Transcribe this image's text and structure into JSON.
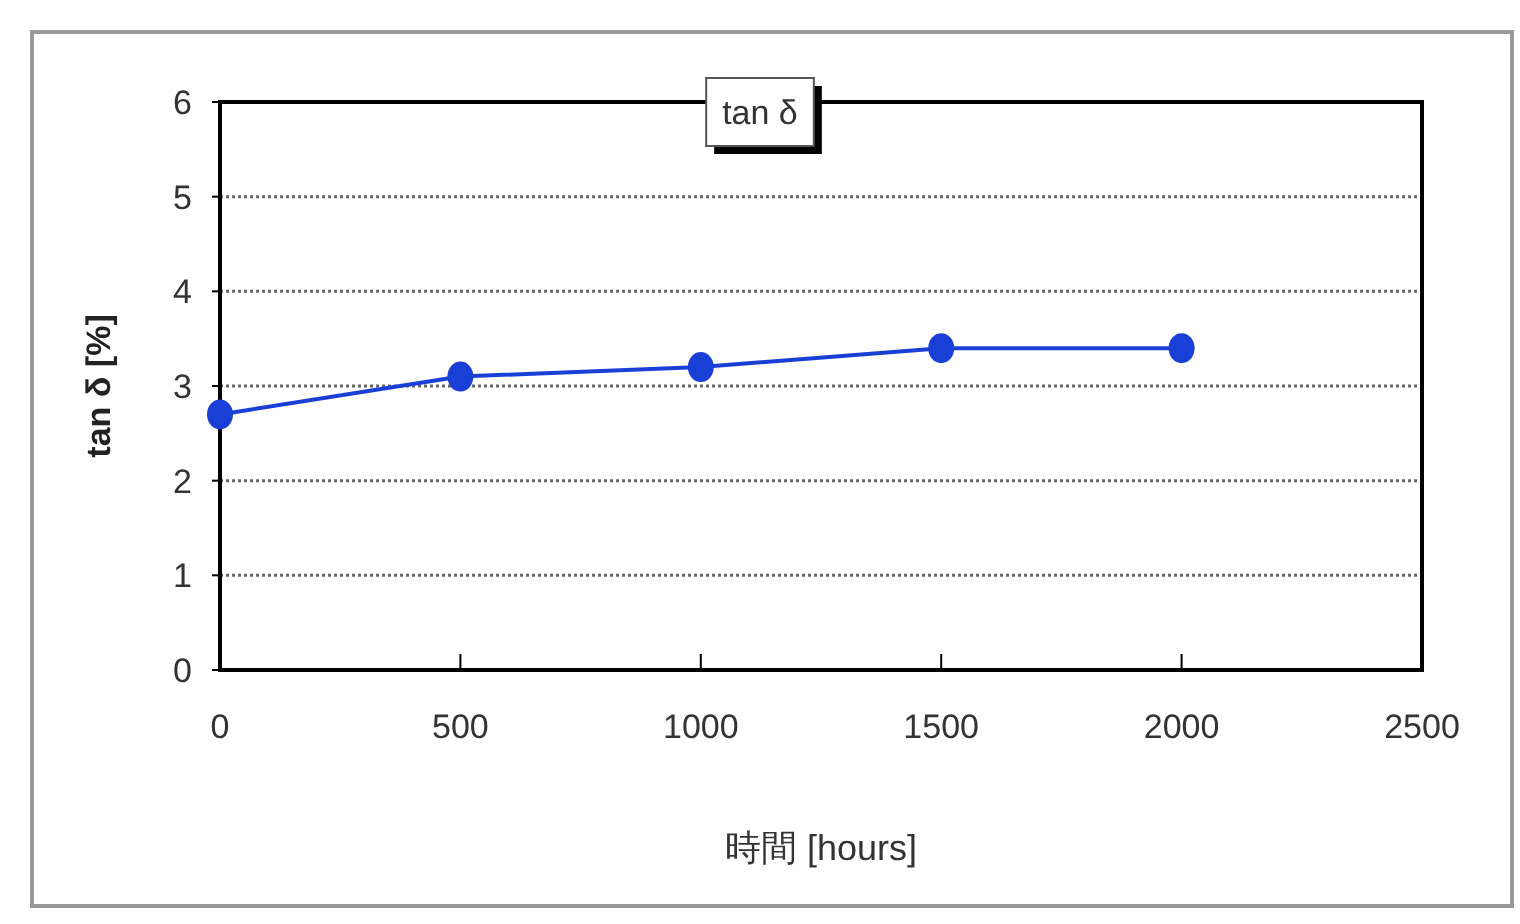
{
  "chart_data": {
    "type": "line",
    "title": "tan δ",
    "xlabel": "時間 [hours]",
    "ylabel": "tan δ [%]",
    "x": [
      0,
      500,
      1000,
      1500,
      2000
    ],
    "series": [
      {
        "color": "#1a3fd6",
        "values": [
          2.7,
          3.1,
          3.2,
          3.4,
          3.4
        ]
      }
    ],
    "xlim": [
      0,
      2500
    ],
    "xticks": [
      0,
      500,
      1000,
      1500,
      2000,
      2500
    ],
    "ylim": [
      0,
      6
    ],
    "yticks": [
      0,
      1,
      2,
      3,
      4,
      5,
      6
    ],
    "grid": "y",
    "marker": "circle",
    "line_style": "solid"
  }
}
